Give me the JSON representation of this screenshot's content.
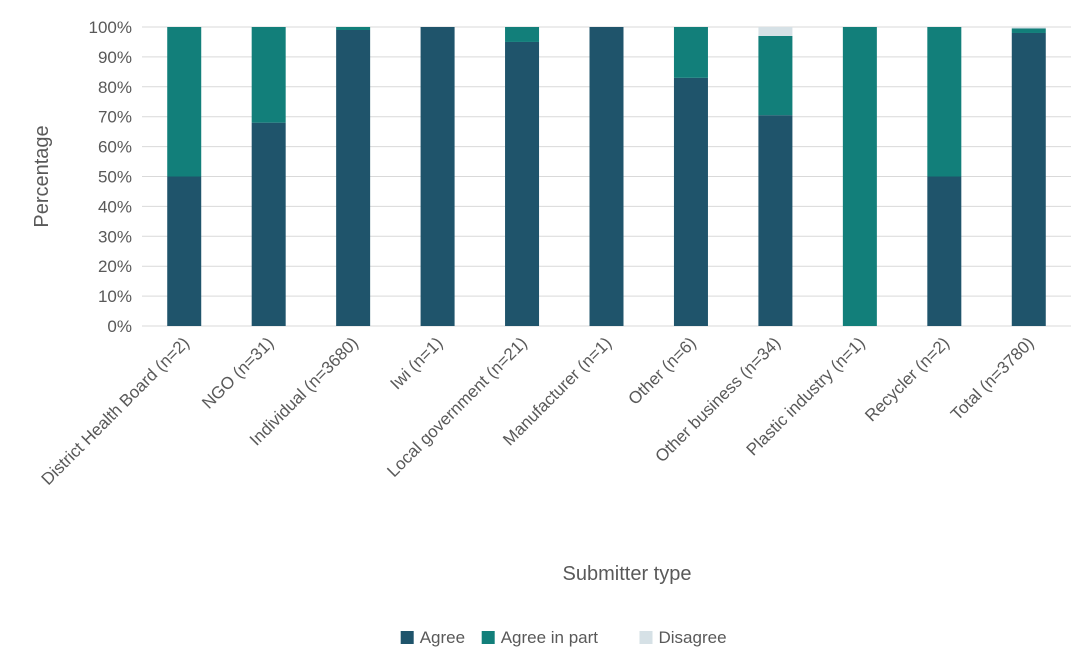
{
  "chart_data": {
    "type": "bar",
    "stacked": true,
    "title": "",
    "xlabel": "Submitter type",
    "ylabel": "Percentage",
    "ylim": [
      0,
      100
    ],
    "y_ticks": [
      "0%",
      "10%",
      "20%",
      "30%",
      "40%",
      "50%",
      "60%",
      "70%",
      "80%",
      "90%",
      "100%"
    ],
    "grid": true,
    "legend_position": "bottom",
    "categories": [
      "District Health Board (n=2)",
      "NGO (n=31)",
      "Individual (n=3680)",
      "Iwi (n=1)",
      "Local government (n=21)",
      "Manufacturer (n=1)",
      "Other (n=6)",
      "Other business (n=34)",
      "Plastic industry (n=1)",
      "Recycler (n=2)",
      "Total (n=3780)"
    ],
    "series": [
      {
        "name": "Agree",
        "color": "#1f546b",
        "values": [
          50,
          68,
          99,
          100,
          95,
          100,
          83,
          70.5,
          0,
          50,
          98
        ]
      },
      {
        "name": "Agree in part",
        "color": "#127f7a",
        "values": [
          50,
          32,
          1,
          0,
          5,
          0,
          17,
          26.5,
          100,
          50,
          1.5
        ]
      },
      {
        "name": "Disagree",
        "color": "#d6e1e6",
        "values": [
          0,
          0,
          0,
          0,
          0,
          0,
          0,
          3,
          0,
          0,
          0.5
        ]
      }
    ]
  }
}
